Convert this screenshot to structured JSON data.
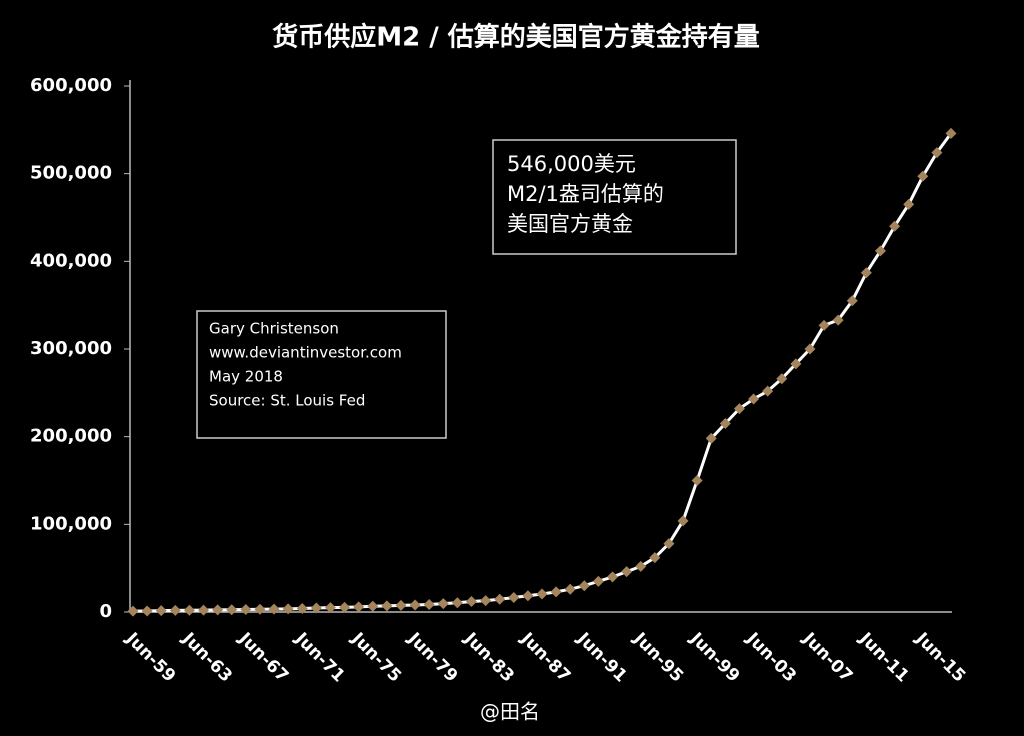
{
  "chart_data": {
    "type": "line",
    "title": "货币供应M2 / 估算的美国官方黄金持有量",
    "annotations": [
      "546,000美元",
      "M2/1盎司估算的",
      "美国官方黄金"
    ],
    "source_box": [
      "Gary Christenson",
      "www.deviantinvestor.com",
      "May 2018",
      "Source: St. Louis Fed"
    ],
    "watermark": "@田名",
    "categories": [
      "Jun-59",
      null,
      null,
      null,
      "Jun-63",
      null,
      null,
      null,
      "Jun-67",
      null,
      null,
      null,
      "Jun-71",
      null,
      null,
      null,
      "Jun-75",
      null,
      null,
      null,
      "Jun-79",
      null,
      null,
      null,
      "Jun-83",
      null,
      null,
      null,
      "Jun-87",
      null,
      null,
      null,
      "Jun-91",
      null,
      null,
      null,
      "Jun-95",
      null,
      null,
      null,
      "Jun-99",
      null,
      null,
      null,
      "Jun-03",
      null,
      null,
      null,
      "Jun-07",
      null,
      null,
      null,
      "Jun-11",
      null,
      null,
      null,
      "Jun-15",
      null,
      null
    ],
    "series": [
      {
        "name": "M2 / gold",
        "color": "#a3845c",
        "line_color": "#ffffff",
        "values": [
          1000,
          1200,
          1500,
          1800,
          2000,
          2200,
          2400,
          2600,
          2900,
          3100,
          3300,
          3500,
          4000,
          4500,
          5000,
          5300,
          5800,
          6500,
          7000,
          7500,
          8000,
          8500,
          9500,
          10500,
          12000,
          13000,
          14500,
          16500,
          18500,
          20500,
          23000,
          26000,
          30000,
          35000,
          40000,
          46000,
          52000,
          62000,
          78000,
          104000,
          150000,
          198000,
          215000,
          232000,
          243000,
          252000,
          266000,
          283000,
          300000,
          327000,
          333000,
          355000,
          387000,
          412000,
          440000,
          465000,
          497000,
          524000,
          546000
        ]
      }
    ],
    "ylim": [
      0,
      600000
    ],
    "yticks": [
      0,
      {
        "value": 100000,
        "label": "100,000"
      },
      {
        "value": 200000,
        "label": "200,000"
      },
      {
        "value": 300000,
        "label": "300,000"
      },
      {
        "value": 400000,
        "label": "400,000"
      },
      {
        "value": 500000,
        "label": "500,000"
      },
      {
        "value": 600000,
        "label": "600,000"
      }
    ]
  }
}
